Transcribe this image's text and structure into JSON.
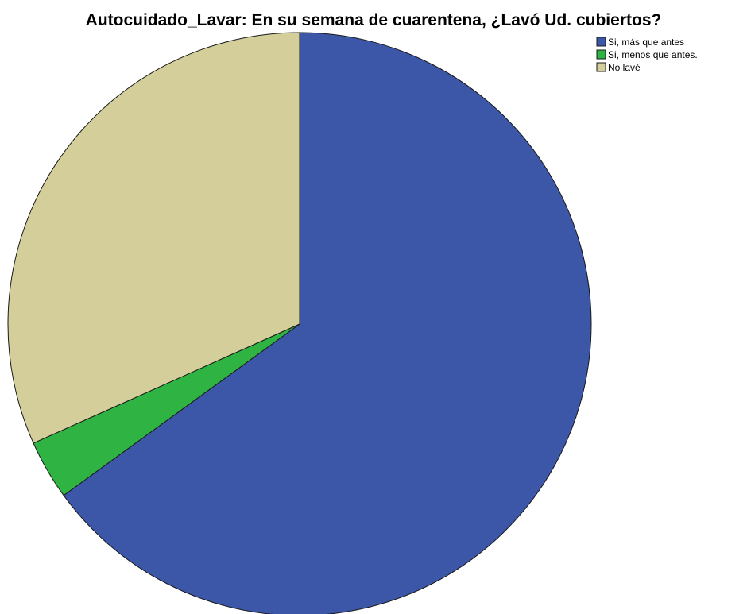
{
  "chart_data": {
    "type": "pie",
    "title": "Autocuidado_Lavar: En su semana de cuarentena, ¿Lavó Ud. cubiertos?",
    "categories": [
      "Si, más que antes",
      "Si, menos que antes.",
      "No lavé"
    ],
    "values": [
      65.0,
      3.3,
      31.7
    ],
    "unit": "%",
    "colors": [
      "#3d57a8",
      "#2fb443",
      "#d3ce9a"
    ],
    "legend_position": "top-right",
    "start_angle_deg": 0,
    "direction": "clockwise"
  }
}
